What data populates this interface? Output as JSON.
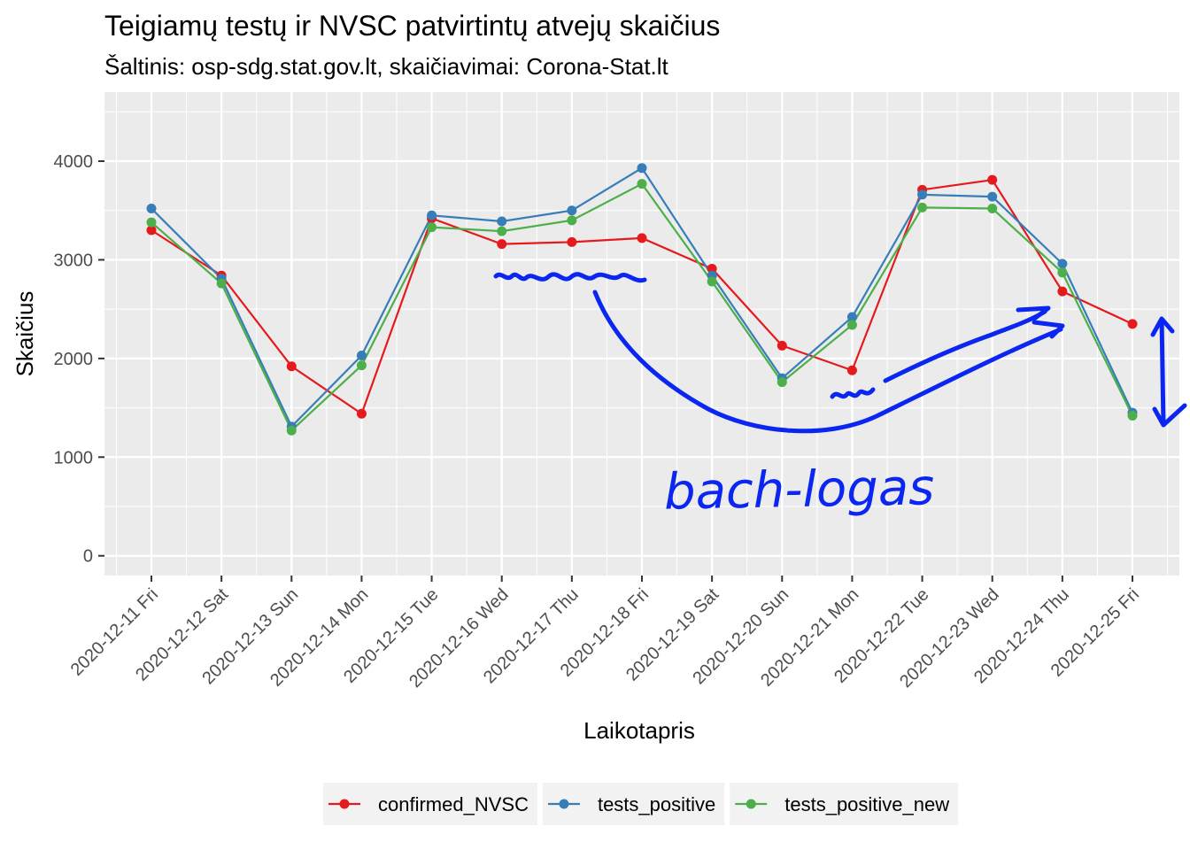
{
  "chart_data": {
    "type": "line",
    "title": "Teigiamų testų ir NVSC patvirtintų atvejų skaičius",
    "subtitle": "Šaltinis: osp-sdg.stat.gov.lt, skaičiavimai: Corona-Stat.lt",
    "xlabel": "Laikotapris",
    "ylabel": "Skaičius",
    "ylim": [
      -200,
      4700
    ],
    "y_ticks": [
      0,
      1000,
      2000,
      3000,
      4000
    ],
    "y_tick_labels": [
      "0",
      "1000",
      "2000",
      "3000",
      "4000"
    ],
    "grid": true,
    "legend_position": "bottom",
    "categories": [
      "2020-12-11 Fri",
      "2020-12-12 Sat",
      "2020-12-13 Sun",
      "2020-12-14 Mon",
      "2020-12-15 Tue",
      "2020-12-16 Wed",
      "2020-12-17 Thu",
      "2020-12-18 Fri",
      "2020-12-19 Sat",
      "2020-12-20 Sun",
      "2020-12-21 Mon",
      "2020-12-22 Tue",
      "2020-12-23 Wed",
      "2020-12-24 Thu",
      "2020-12-25 Fri"
    ],
    "series": [
      {
        "name": "confirmed_NVSC",
        "color": "#e41a1c",
        "values": [
          3300,
          2840,
          1920,
          1440,
          3420,
          3160,
          3180,
          3220,
          2910,
          2130,
          1880,
          3710,
          3810,
          2680,
          2350
        ]
      },
      {
        "name": "tests_positive",
        "color": "#377eb8",
        "values": [
          3520,
          2810,
          1310,
          2030,
          3450,
          3390,
          3500,
          3930,
          2840,
          1800,
          2420,
          3660,
          3640,
          2960,
          1450
        ]
      },
      {
        "name": "tests_positive_new",
        "color": "#4daf4a",
        "values": [
          3380,
          2760,
          1270,
          1930,
          3330,
          3290,
          3400,
          3770,
          2780,
          1760,
          2340,
          3530,
          3520,
          2870,
          1420
        ]
      }
    ],
    "annotation": {
      "text": "bach-logas",
      "color": "#0a26f0"
    }
  }
}
